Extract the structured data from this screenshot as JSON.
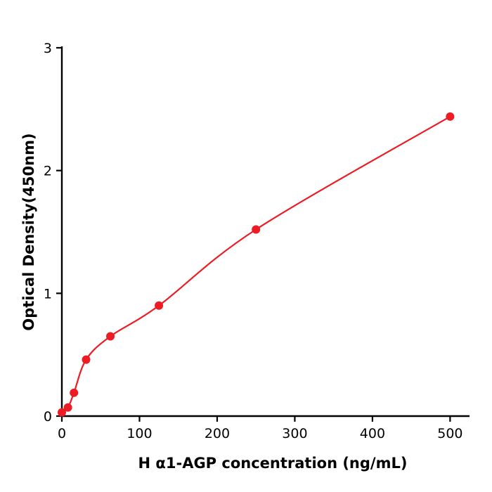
{
  "chart_data": {
    "type": "scatter",
    "title": "",
    "xlabel": "H  α1-AGP concentration (ng/mL)",
    "ylabel": "Optical Density(450nm)",
    "x": [
      0,
      7.8,
      15.6,
      31.25,
      62.5,
      125,
      250,
      500
    ],
    "y": [
      0.03,
      0.07,
      0.19,
      0.46,
      0.65,
      0.9,
      1.52,
      2.44
    ],
    "fit_curve": "smooth fitted curve through all data points",
    "x_ticks": [
      0,
      100,
      200,
      300,
      400,
      500
    ],
    "y_ticks": [
      0,
      1,
      2,
      3
    ],
    "xlim": [
      0,
      525
    ],
    "ylim": [
      0,
      3
    ],
    "point_color": "#ed1c24",
    "line_color": "#ed1c24",
    "axis_color": "#000000",
    "grid": false,
    "legend": "none"
  }
}
